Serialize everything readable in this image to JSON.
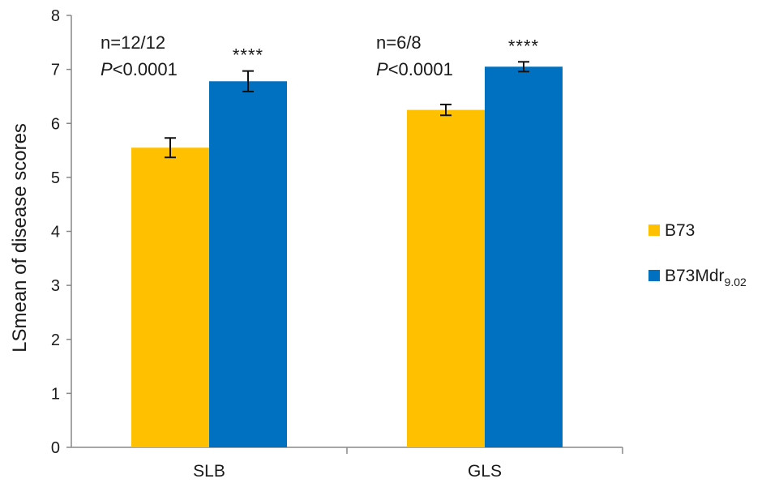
{
  "chart_data": {
    "type": "bar",
    "categories": [
      "SLB",
      "GLS"
    ],
    "series": [
      {
        "name": "B73",
        "name_sub": "",
        "color": "#FFC000",
        "values": [
          5.55,
          6.25
        ],
        "errors": [
          0.18,
          0.1
        ]
      },
      {
        "name": "B73Mdr",
        "name_sub": "9.02",
        "color": "#0070C0",
        "values": [
          6.78,
          7.05
        ],
        "errors": [
          0.19,
          0.09
        ]
      }
    ],
    "title": "",
    "xlabel": "",
    "ylabel": "LSmean of disease scores",
    "ylim": [
      0,
      8
    ],
    "yticks": [
      "0",
      "1",
      "2",
      "3",
      "4",
      "5",
      "6",
      "7",
      "8"
    ],
    "grid": false,
    "legend": "right",
    "annotations": [
      {
        "category": "SLB",
        "n": "n=12/12",
        "p_letter": "P",
        "p_rest": "<0.0001",
        "stars": "****"
      },
      {
        "category": "GLS",
        "n": "n=6/8",
        "p_letter": "P",
        "p_rest": "<0.0001",
        "stars": "****"
      }
    ]
  }
}
